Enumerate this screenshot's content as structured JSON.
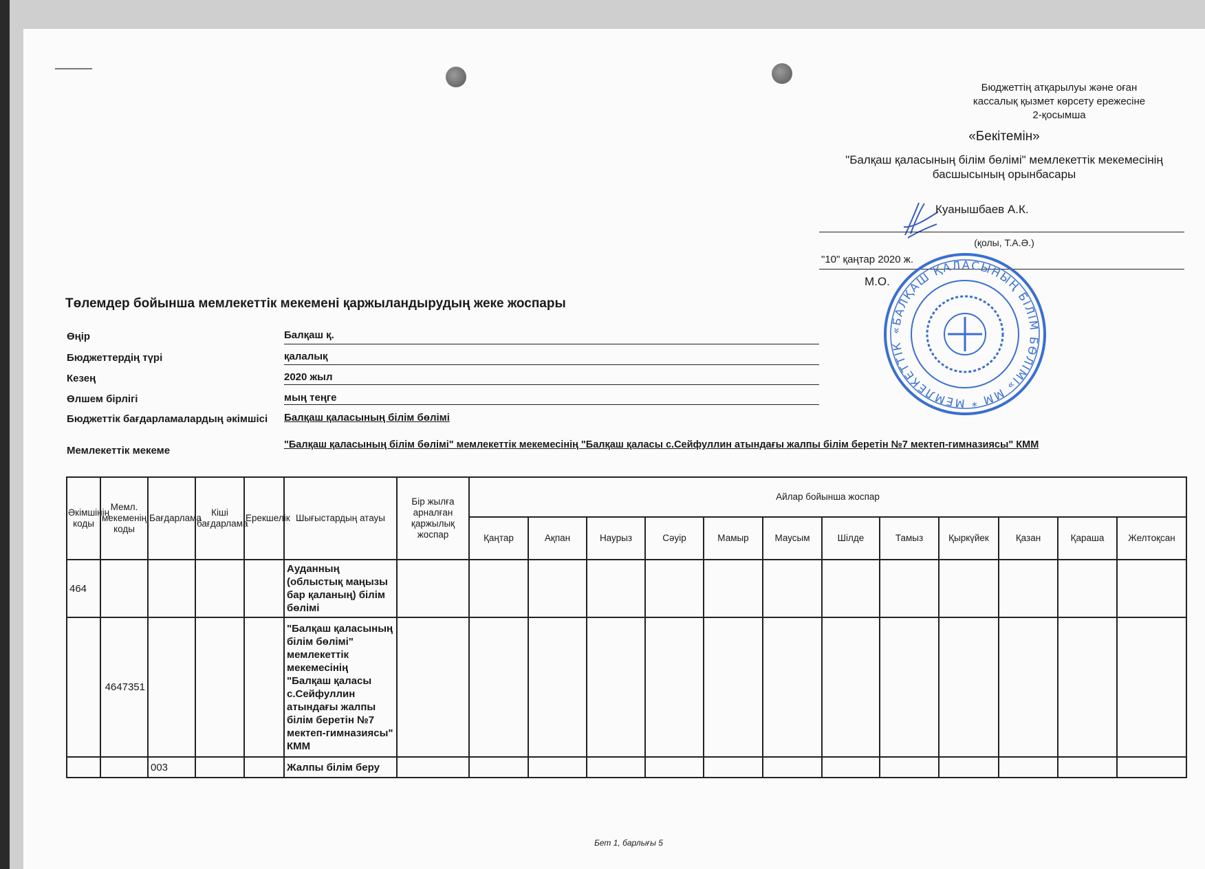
{
  "approval": {
    "annex_line1": "Бюджеттің атқарылуы және оған",
    "annex_line2": "кассалық қызмет көрсету ережесіне",
    "annex_line3": "2-қосымша",
    "approve": "«Бекітемін»",
    "position_line1": "\"Балқаш қаласының білім бөлімі\" мемлекеттік мекемесінің",
    "position_line2": "басшысының орынбасары",
    "signer": "Куанышбаев А.К.",
    "signature_caption": "(қолы, Т.А.Ә.)",
    "date": "\"10\" қаңтар 2020 ж.",
    "seal_place": "М.О.",
    "stamp_text": "«БАЛҚАШ ҚАЛАСЫНЫҢ БІЛІМ БӨЛІМІ» ММ * МЕМЛЕКЕТТІК МЕКЕМЕСІ",
    "stamp_color": "#3a6fd0"
  },
  "title": "Төлемдер бойынша мемлекеттік мекемені қаржыландырудың жеке жоспары",
  "fields": [
    {
      "label": "Өңір",
      "value": "Балқаш қ."
    },
    {
      "label": "Бюджеттердің түрі",
      "value": "қалалық"
    },
    {
      "label": "Кезең",
      "value": "2020  жыл"
    },
    {
      "label": "Өлшем бірлігі",
      "value": "мың теңге"
    },
    {
      "label": "Бюджеттік бағдарламалардың әкімшісі",
      "value": "Балқаш қаласының білім бөлімі"
    },
    {
      "label": "Мемлекеттік мекеме",
      "value": "\"Балқаш қаласының білім бөлімі\" мемлекеттік мекемесінің \"Балқаш қаласы с.Сейфуллин атындағы жалпы білім беретін №7 мектеп-гимназиясы\" КММ"
    }
  ],
  "table": {
    "headers": [
      "Әкімшінің коды",
      "Мемл. мекеменің коды",
      "Бағдарлама",
      "Кіші бағдарлама",
      "Ерекшелік",
      "Шығыстардың атауы",
      "Бір жылға арналған қаржылық жоспар"
    ],
    "months_header": "Айлар бойынша жоспар",
    "months": [
      "Қаңтар",
      "Ақпан",
      "Наурыз",
      "Сәуір",
      "Мамыр",
      "Маусым",
      "Шілде",
      "Тамыз",
      "Қыркүйек",
      "Қазан",
      "Қараша",
      "Желтоқсан"
    ],
    "rows": [
      {
        "admin": "464",
        "inst": "",
        "prog": "",
        "subprog": "",
        "spec": "",
        "name": "Ауданның (облыстық маңызы бар қаланың) білім бөлімі"
      },
      {
        "admin": "",
        "inst": "4647351",
        "prog": "",
        "subprog": "",
        "spec": "",
        "name": "\"Балқаш қаласының білім бөлімі\" мемлекеттік мекемесінің \"Балқаш қаласы с.Сейфуллин атындағы жалпы білім беретін №7 мектеп-гимназиясы\" КММ"
      },
      {
        "admin": "",
        "inst": "",
        "prog": "003",
        "subprog": "",
        "spec": "",
        "name": "Жалпы білім беру"
      }
    ]
  },
  "footer": "Бет 1, барлығы 5"
}
